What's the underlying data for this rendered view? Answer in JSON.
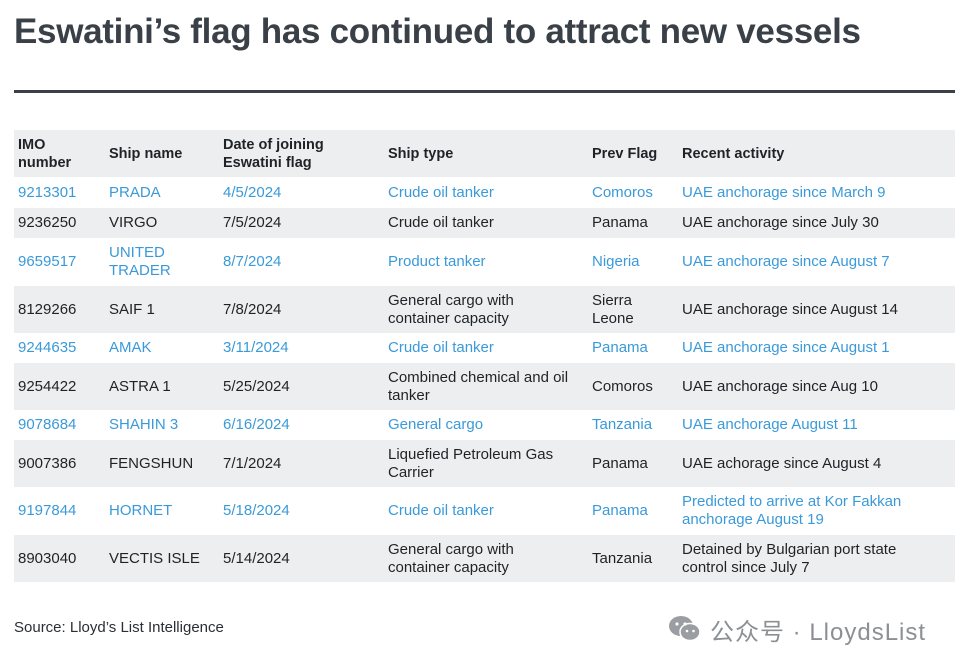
{
  "title": "Eswatini’s flag has continued to attract new vessels",
  "headers": {
    "imo": [
      "IMO",
      "number"
    ],
    "ship_name": "Ship name",
    "date": [
      "Date of joining",
      "Eswatini flag"
    ],
    "ship_type": "Ship type",
    "prev_flag": "Prev Flag",
    "recent_activity": "Recent activity"
  },
  "rows": [
    {
      "imo": "9213301",
      "name": [
        "PRADA"
      ],
      "date": "4/5/2024",
      "type": [
        "Crude oil tanker"
      ],
      "flag": [
        "Comoros"
      ],
      "activity": [
        "UAE anchorage since March 9"
      ]
    },
    {
      "imo": "9236250",
      "name": [
        "VIRGO"
      ],
      "date": "7/5/2024",
      "type": [
        "Crude oil tanker"
      ],
      "flag": [
        "Panama"
      ],
      "activity": [
        "UAE anchorage since July 30"
      ]
    },
    {
      "imo": "9659517",
      "name": [
        "UNITED",
        "TRADER"
      ],
      "date": "8/7/2024",
      "type": [
        "Product tanker"
      ],
      "flag": [
        "Nigeria"
      ],
      "activity": [
        "UAE anchorage since August 7"
      ]
    },
    {
      "imo": "8129266",
      "name": [
        "SAIF 1"
      ],
      "date": "7/8/2024",
      "type": [
        "General cargo with",
        "container capacity"
      ],
      "flag": [
        "Sierra",
        "Leone"
      ],
      "activity": [
        "UAE anchorage since August 14"
      ]
    },
    {
      "imo": "9244635",
      "name": [
        "AMAK"
      ],
      "date": "3/11/2024",
      "type": [
        "Crude oil tanker"
      ],
      "flag": [
        "Panama"
      ],
      "activity": [
        "UAE anchorage since August 1"
      ]
    },
    {
      "imo": "9254422",
      "name": [
        "ASTRA 1"
      ],
      "date": "5/25/2024",
      "type": [
        "Combined chemical and oil",
        "tanker"
      ],
      "flag": [
        "Comoros"
      ],
      "activity": [
        "UAE anchorage since Aug 10"
      ]
    },
    {
      "imo": "9078684",
      "name": [
        "SHAHIN 3"
      ],
      "date": "6/16/2024",
      "type": [
        "General cargo"
      ],
      "flag": [
        "Tanzania"
      ],
      "activity": [
        "UAE anchorage August 11"
      ]
    },
    {
      "imo": "9007386",
      "name": [
        "FENGSHUN"
      ],
      "date": "7/1/2024",
      "type": [
        "Liquefied Petroleum Gas",
        "Carrier"
      ],
      "flag": [
        "Panama"
      ],
      "activity": [
        "UAE achorage since August 4"
      ]
    },
    {
      "imo": "9197844",
      "name": [
        "HORNET"
      ],
      "date": "5/18/2024",
      "type": [
        "Crude oil tanker"
      ],
      "flag": [
        "Panama"
      ],
      "activity": [
        "Predicted to arrive at Kor Fakkan",
        "anchorage August 19"
      ]
    },
    {
      "imo": "8903040",
      "name": [
        "VECTIS ISLE"
      ],
      "date": "5/14/2024",
      "type": [
        "General cargo with",
        "container capacity"
      ],
      "flag": [
        "Tanzania"
      ],
      "activity": [
        "Detained by Bulgarian port state",
        "control since July 7"
      ]
    }
  ],
  "source": "Source: Lloyd’s List Intelligence",
  "watermark": {
    "text": "公众号 · LloydsList",
    "icon": "wechat-icon"
  },
  "colors": {
    "title": "#3a4047",
    "link": "#3a9ad9",
    "stripe": "#eceeef"
  }
}
